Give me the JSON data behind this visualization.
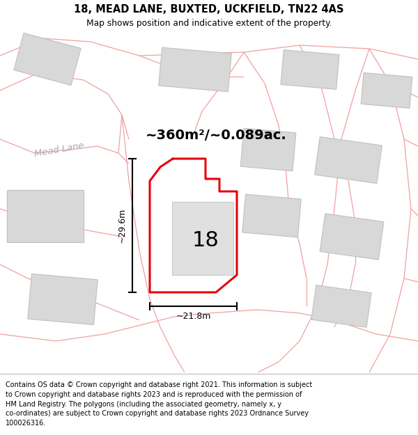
{
  "title": "18, MEAD LANE, BUXTED, UCKFIELD, TN22 4AS",
  "subtitle": "Map shows position and indicative extent of the property.",
  "area_text": "~360m²/~0.089ac.",
  "width_label": "~21.8m",
  "height_label": "~29.6m",
  "number_label": "18",
  "footer_text": "Contains OS data © Crown copyright and database right 2021. This information is subject\nto Crown copyright and database rights 2023 and is reproduced with the permission of\nHM Land Registry. The polygons (including the associated geometry, namely x, y\nco-ordinates) are subject to Crown copyright and database rights 2023 Ordnance Survey\n100026316.",
  "red_color": "#e8000a",
  "light_red": "#f0a0a0",
  "gray_fc": "#d8d8d8",
  "gray_ec": "#c0c0c0",
  "map_bg": "#ffffff",
  "header_split": 0.073,
  "footer_split": 0.145
}
